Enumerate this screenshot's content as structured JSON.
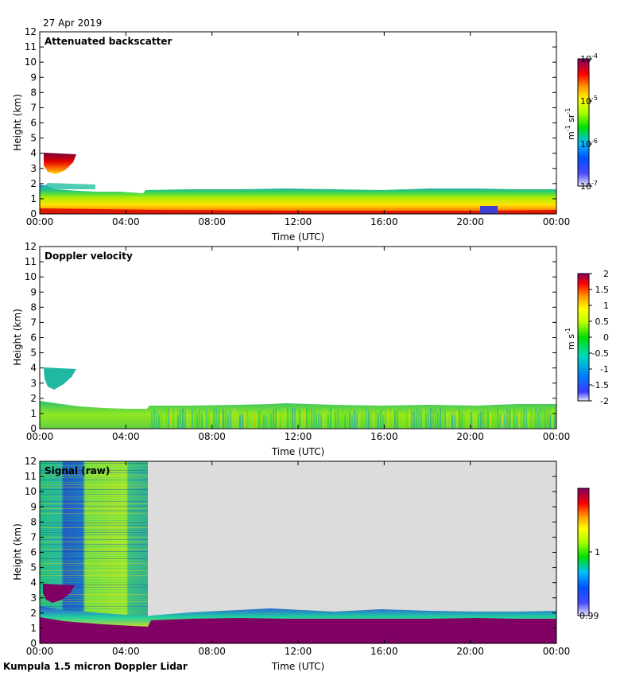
{
  "date": "27 Apr 2019",
  "footer": "Kumpula 1.5 micron Doppler Lidar",
  "chart_data": [
    {
      "type": "heatmap",
      "title": "Attenuated backscatter",
      "xlabel": "Time (UTC)",
      "ylabel": "Height (km)",
      "x_ticks": [
        "00:00",
        "04:00",
        "08:00",
        "12:00",
        "16:00",
        "20:00",
        "00:00"
      ],
      "y_ticks": [
        "0",
        "1",
        "2",
        "3",
        "4",
        "5",
        "6",
        "7",
        "8",
        "9",
        "10",
        "11",
        "12"
      ],
      "ylim": [
        0,
        12
      ],
      "colorbar": {
        "label": "m-1 sr-1",
        "label_main": "m",
        "label_exp1": "-1",
        "label_mid": " sr",
        "label_exp2": "-1",
        "scale": "log",
        "range": [
          1e-07,
          0.0001
        ],
        "ticks": [
          {
            "base": "10",
            "exp": "-4",
            "value": 0.0001
          },
          {
            "base": "10",
            "exp": "-5",
            "value": 1e-05
          },
          {
            "base": "10",
            "exp": "-6",
            "value": 1e-06
          },
          {
            "base": "10",
            "exp": "-7",
            "value": 1e-07
          }
        ]
      },
      "layers": [
        {
          "feature": "boundary layer",
          "t_start_h": 0,
          "t_end_h": 24,
          "top_km": 1.6
        },
        {
          "feature": "elevated cloud",
          "t_start_h": 0.3,
          "t_end_h": 1.8,
          "base_km": 2.7,
          "top_km": 4.1
        }
      ]
    },
    {
      "type": "heatmap",
      "title": "Doppler velocity",
      "xlabel": "Time (UTC)",
      "ylabel": "Height (km)",
      "x_ticks": [
        "00:00",
        "04:00",
        "08:00",
        "12:00",
        "16:00",
        "20:00",
        "00:00"
      ],
      "y_ticks": [
        "0",
        "1",
        "2",
        "3",
        "4",
        "5",
        "6",
        "7",
        "8",
        "9",
        "10",
        "11",
        "12"
      ],
      "ylim": [
        0,
        12
      ],
      "colorbar": {
        "label": "m s-1",
        "label_main": "m s",
        "label_exp1": "-1",
        "scale": "linear",
        "range": [
          -2,
          2
        ],
        "ticks": [
          "2",
          "1.5",
          "1",
          "0.5",
          "0",
          "-0.5",
          "-1",
          "-1.5",
          "-2"
        ]
      }
    },
    {
      "type": "heatmap",
      "title": "Signal (raw)",
      "xlabel": "Time (UTC)",
      "ylabel": "Height (km)",
      "x_ticks": [
        "00:00",
        "04:00",
        "08:00",
        "12:00",
        "16:00",
        "20:00",
        "00:00"
      ],
      "y_ticks": [
        "0",
        "1",
        "2",
        "3",
        "4",
        "5",
        "6",
        "7",
        "8",
        "9",
        "10",
        "11",
        "12"
      ],
      "ylim": [
        0,
        12
      ],
      "colorbar": {
        "scale": "linear",
        "range": [
          0.99,
          1.01
        ],
        "ticks": [
          "1",
          "0.99"
        ]
      }
    }
  ]
}
